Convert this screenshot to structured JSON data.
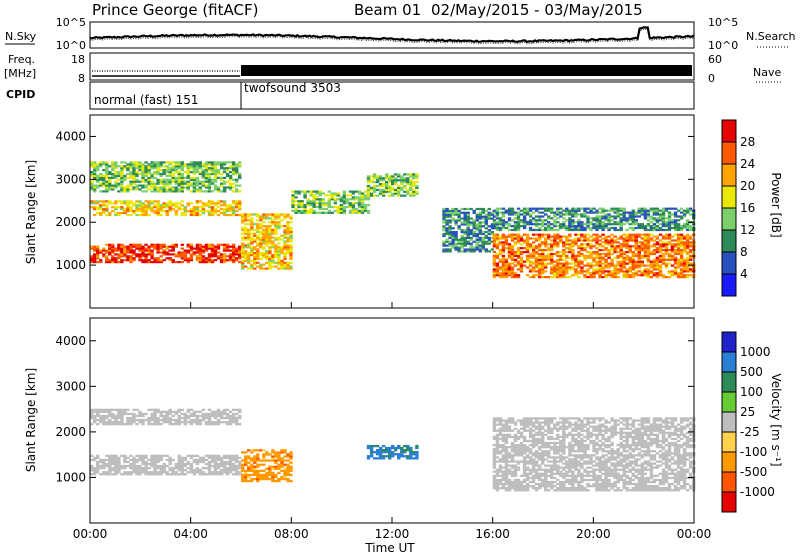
{
  "header": {
    "station": "Prince George (fitACF)",
    "beam": "Beam 01",
    "date_range": "02/May/2015 - 03/May/2015"
  },
  "noise_panel": {
    "left_label": "N.Sky",
    "right_label": "N.Search",
    "right_ticks": [
      "10^5",
      "10^0"
    ],
    "left_ticks": [
      "10^5",
      "10^0"
    ]
  },
  "freq_panel": {
    "left_label_1": "Freq.",
    "left_label_2": "[MHz]",
    "left_ticks": [
      "18",
      "8"
    ],
    "right_ticks": [
      "60",
      "0"
    ],
    "right_label": "Nave"
  },
  "cpid_panel": {
    "label": "CPID",
    "modes": [
      {
        "name": "normal (fast) 151",
        "start_hour": 0,
        "end_hour": 6
      },
      {
        "name": "twofsound 3503",
        "start_hour": 6,
        "end_hour": 24
      }
    ]
  },
  "x_axis": {
    "label": "Time UT",
    "ticks": [
      "00:00",
      "04:00",
      "08:00",
      "12:00",
      "16:00",
      "20:00",
      "00:00"
    ],
    "range_hours": [
      0,
      24
    ]
  },
  "power_panel": {
    "y_label": "Slant Range [km]",
    "y_ticks": [
      "1000",
      "2000",
      "3000",
      "4000"
    ],
    "colorbar": {
      "label": "Power [dB]",
      "ticks": [
        "4",
        "8",
        "12",
        "16",
        "20",
        "24",
        "28"
      ],
      "colors": [
        "#1a1aff",
        "#2a52be",
        "#2e8b57",
        "#7bd06b",
        "#e8e800",
        "#ffa500",
        "#ff5a00",
        "#e60000"
      ]
    }
  },
  "velocity_panel": {
    "y_label": "Slant Range [km]",
    "y_ticks": [
      "1000",
      "2000",
      "3000",
      "4000"
    ],
    "colorbar": {
      "label": "Velocity [m s⁻¹]",
      "ticks": [
        "1000",
        "500",
        "100",
        "25",
        "-25",
        "-100",
        "-500",
        "-1000"
      ],
      "colors": [
        "#2222cc",
        "#2a7fd4",
        "#2e8b57",
        "#66cc33",
        "#bebebe",
        "#ffd24d",
        "#ff9900",
        "#ff5500",
        "#e60000"
      ]
    }
  },
  "chart_data": {
    "type": "heatmap",
    "title": "Prince George (fitACF) Beam 01 02/May/2015 - 03/May/2015",
    "xlabel": "Time UT",
    "ylabel": "Slant Range [km]",
    "xlim_hours": [
      0,
      24
    ],
    "ylim_km": [
      0,
      4500
    ],
    "power_echo_regions": [
      {
        "t0": 0,
        "t1": 6,
        "r0": 1050,
        "r1": 1500,
        "value_db": 28
      },
      {
        "t0": 0,
        "t1": 6,
        "r0": 2150,
        "r1": 2500,
        "value_db": 20
      },
      {
        "t0": 0,
        "t1": 6,
        "r0": 2700,
        "r1": 3400,
        "value_db": 14
      },
      {
        "t0": 6,
        "t1": 8,
        "r0": 900,
        "r1": 2200,
        "value_db": 20
      },
      {
        "t0": 8,
        "t1": 11,
        "r0": 2200,
        "r1": 2700,
        "value_db": 14
      },
      {
        "t0": 11,
        "t1": 13,
        "r0": 2600,
        "r1": 3100,
        "value_db": 14
      },
      {
        "t0": 14,
        "t1": 16,
        "r0": 1300,
        "r1": 2300,
        "value_db": 10
      },
      {
        "t0": 16,
        "t1": 24,
        "r0": 700,
        "r1": 1700,
        "value_db": 24
      },
      {
        "t0": 16,
        "t1": 24,
        "r0": 1800,
        "r1": 2300,
        "value_db": 10
      }
    ],
    "velocity_echo_regions": [
      {
        "t0": 0,
        "t1": 6,
        "r0": 1050,
        "r1": 1500,
        "value_ms": 0
      },
      {
        "t0": 0,
        "t1": 6,
        "r0": 2150,
        "r1": 2500,
        "value_ms": 0
      },
      {
        "t0": 6,
        "t1": 8,
        "r0": 900,
        "r1": 1600,
        "value_ms": -300
      },
      {
        "t0": 11,
        "t1": 13,
        "r0": 1400,
        "r1": 1700,
        "value_ms": 600
      },
      {
        "t0": 16,
        "t1": 24,
        "r0": 700,
        "r1": 2300,
        "value_ms": 0
      }
    ]
  }
}
